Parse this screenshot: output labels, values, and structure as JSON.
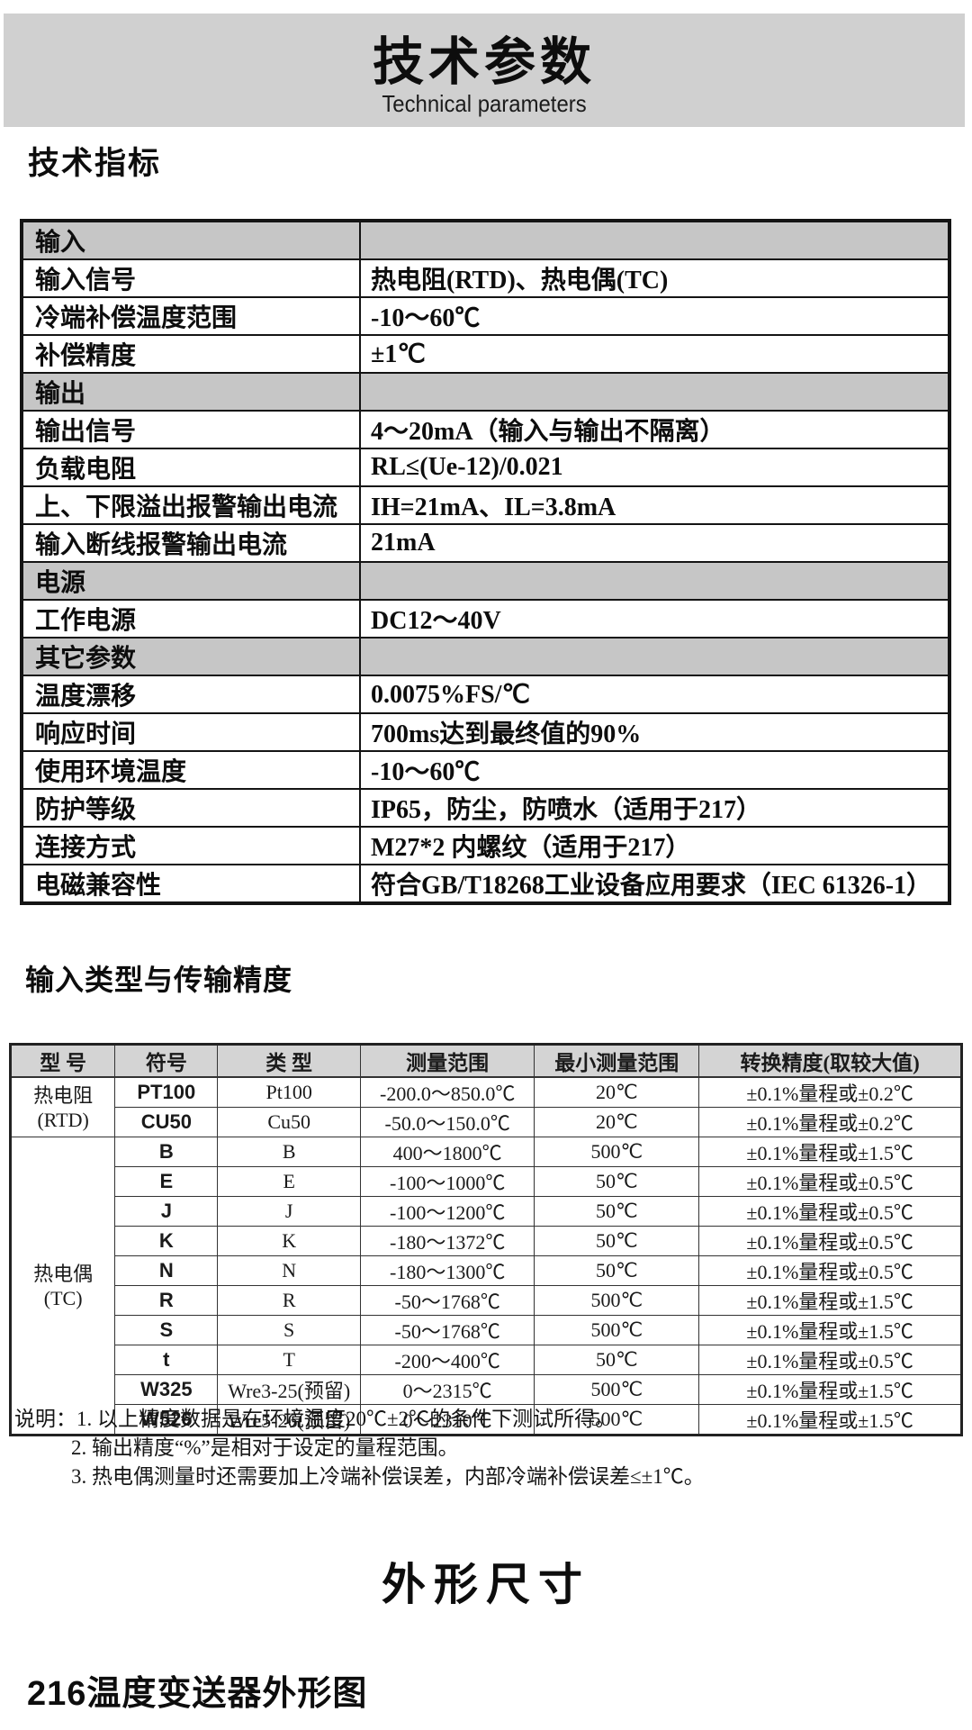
{
  "banner": {
    "title": "技术参数",
    "subtitle": "Technical parameters"
  },
  "sections": {
    "tech_specs": "技术指标",
    "input_types": "输入类型与传输精度",
    "dimensions": "外形尺寸",
    "figure_216": "216温度变送器外形图"
  },
  "colors": {
    "banner_bg": "#d0d0d0",
    "spec_section_row_bg": "#c6c6c6",
    "accuracy_header_bg": "#d4d4d4",
    "border": "#141414"
  },
  "spec_table": {
    "rows": [
      {
        "label": "输入",
        "value": "",
        "section": true
      },
      {
        "label": "输入信号",
        "value": "热电阻(RTD)、热电偶(TC)",
        "section": false
      },
      {
        "label": "冷端补偿温度范围",
        "value": "-10～60℃",
        "section": false
      },
      {
        "label": "补偿精度",
        "value": "±1℃",
        "section": false
      },
      {
        "label": "输出",
        "value": "",
        "section": true
      },
      {
        "label": "输出信号",
        "value": "4～20mA（输入与输出不隔离）",
        "section": false
      },
      {
        "label": "负载电阻",
        "value": "RL≤(Ue-12)/0.021",
        "section": false
      },
      {
        "label": "上、下限溢出报警输出电流",
        "value": "IH=21mA、IL=3.8mA",
        "section": false
      },
      {
        "label": "输入断线报警输出电流",
        "value": "21mA",
        "section": false
      },
      {
        "label": "电源",
        "value": "",
        "section": true
      },
      {
        "label": "工作电源",
        "value": "DC12～40V",
        "section": false
      },
      {
        "label": "其它参数",
        "value": "",
        "section": true
      },
      {
        "label": "温度漂移",
        "value": "0.0075%FS/℃",
        "section": false
      },
      {
        "label": "响应时间",
        "value": "700ms达到最终值的90%",
        "section": false
      },
      {
        "label": "使用环境温度",
        "value": "-10～60℃",
        "section": false
      },
      {
        "label": "防护等级",
        "value": "IP65，防尘，防喷水（适用于217）",
        "section": false
      },
      {
        "label": "连接方式",
        "value": "M27*2 内螺纹（适用于217）",
        "section": false
      },
      {
        "label": "电磁兼容性",
        "value": "符合GB/T18268工业设备应用要求（IEC 61326-1）",
        "section": false
      }
    ]
  },
  "accuracy_table": {
    "headers": [
      "型 号",
      "符号",
      "类 型",
      "测量范围",
      "最小测量范围",
      "转换精度(取较大值)"
    ],
    "col_widths_pct": [
      11.0,
      10.8,
      15.0,
      18.3,
      17.3,
      27.6
    ],
    "groups": [
      {
        "model": "热电阻",
        "model_sub": "(RTD)",
        "rows": [
          [
            "PT100",
            "Pt100",
            "-200.0～850.0℃",
            "20℃",
            "±0.1%量程或±0.2℃"
          ],
          [
            "CU50",
            "Cu50",
            "-50.0～150.0℃",
            "20℃",
            "±0.1%量程或±0.2℃"
          ]
        ]
      },
      {
        "model": "热电偶",
        "model_sub": "(TC)",
        "rows": [
          [
            "B",
            "B",
            "400～1800℃",
            "500℃",
            "±0.1%量程或±1.5℃"
          ],
          [
            "E",
            "E",
            "-100～1000℃",
            "50℃",
            "±0.1%量程或±0.5℃"
          ],
          [
            "J",
            "J",
            "-100～1200℃",
            "50℃",
            "±0.1%量程或±0.5℃"
          ],
          [
            "K",
            "K",
            "-180～1372℃",
            "50℃",
            "±0.1%量程或±0.5℃"
          ],
          [
            "N",
            "N",
            "-180～1300℃",
            "50℃",
            "±0.1%量程或±0.5℃"
          ],
          [
            "R",
            "R",
            "-50～1768℃",
            "500℃",
            "±0.1%量程或±1.5℃"
          ],
          [
            "S",
            "S",
            "-50～1768℃",
            "500℃",
            "±0.1%量程或±1.5℃"
          ],
          [
            "t",
            "T",
            "-200～400℃",
            "50℃",
            "±0.1%量程或±0.5℃"
          ],
          [
            "W325",
            "Wre3-25(预留)",
            "0～2315℃",
            "500℃",
            "±0.1%量程或±1.5℃"
          ],
          [
            "W526",
            "Wre5-26(预留)",
            "0～2310℃",
            "500℃",
            "±0.1%量程或±1.5℃"
          ]
        ]
      }
    ]
  },
  "notes": {
    "lines": [
      "说明：1. 以上精度数据是在环境温度20℃±2℃的条件下测试所得。",
      "2. 输出精度“%”是相对于设定的量程范围。",
      "3. 热电偶测量时还需要加上冷端补偿误差，内部冷端补偿误差≤±1℃。"
    ]
  }
}
